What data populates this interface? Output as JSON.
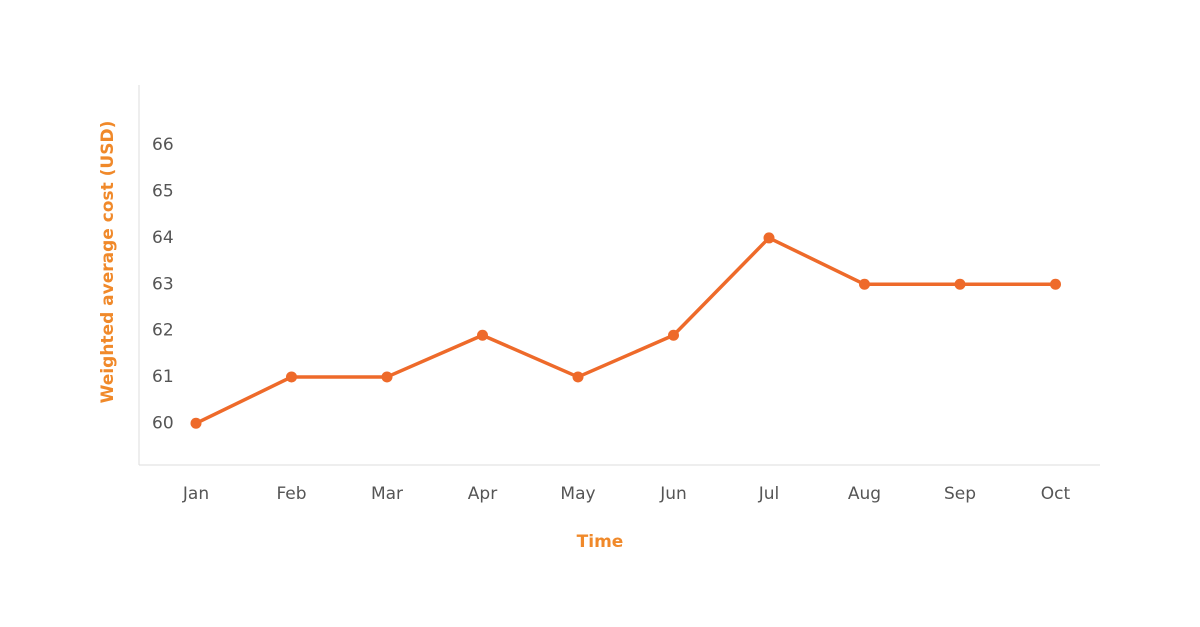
{
  "chart_data": {
    "type": "line",
    "x_label": "Time",
    "y_label": "Weighted average cost (USD)",
    "categories": [
      "Jan",
      "Feb",
      "Mar",
      "Apr",
      "May",
      "Jun",
      "Jul",
      "Aug",
      "Sep",
      "Oct"
    ],
    "series": [
      {
        "name": "Weighted average cost",
        "color": "#ee6a2a",
        "values": [
          60,
          61,
          61,
          61.9,
          61,
          61.9,
          64,
          63,
          63,
          63
        ]
      }
    ],
    "ylim": [
      59.1,
      67.3
    ],
    "yticks": [
      60,
      61,
      62,
      63,
      64,
      65,
      66
    ],
    "grid": false
  }
}
